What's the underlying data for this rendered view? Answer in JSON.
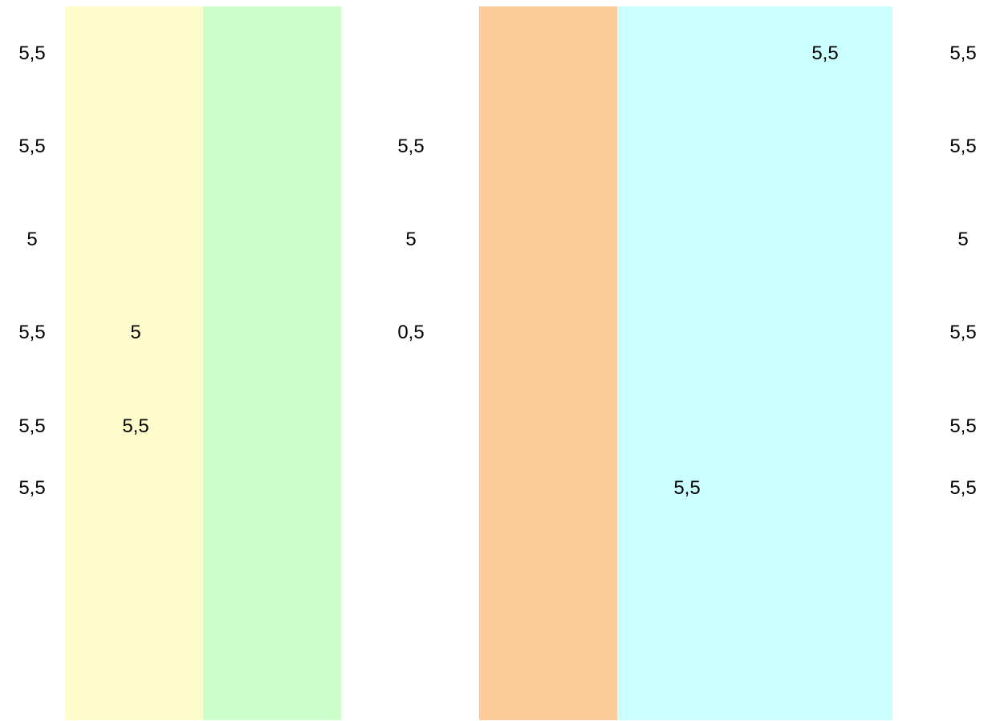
{
  "colors": {
    "background": "#ffffff",
    "band_yellow": "#fefccb",
    "band_green": "#ccfecc",
    "band_orange": "#fccb99",
    "band_cyan": "#cbfefe"
  },
  "columns": {
    "left": [
      "5,5",
      "5,5",
      "5",
      "5,5",
      "5,5",
      "5,5"
    ],
    "yellow": [
      "5",
      "5,5"
    ],
    "middle": [
      "5,5",
      "5",
      "0,5"
    ],
    "cyan_top": "5,5",
    "cyan_bottom": "5,5",
    "right": [
      "5,5",
      "5,5",
      "5",
      "5,5",
      "5,5",
      "5,5"
    ]
  }
}
